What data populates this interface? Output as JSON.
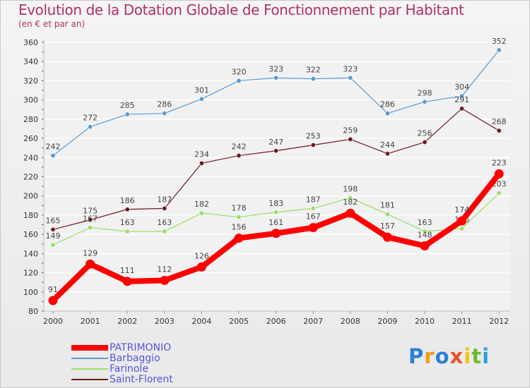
{
  "chart_data": {
    "type": "line",
    "title": "Evolution de la Dotation Globale de Fonctionnement par Habitant",
    "subtitle": "(en € et par an)",
    "categories": [
      "2000",
      "2001",
      "2002",
      "2003",
      "2004",
      "2005",
      "2006",
      "2007",
      "2008",
      "2009",
      "2010",
      "2011",
      "2012"
    ],
    "ylim": [
      80,
      360
    ],
    "yticks": [
      80,
      100,
      120,
      140,
      160,
      180,
      200,
      220,
      240,
      260,
      280,
      300,
      320,
      340,
      360
    ],
    "grid": "horizontal",
    "series": [
      {
        "name": "Barbaggio",
        "color": "#5a9ad0",
        "values": [
          242,
          272,
          285,
          286,
          301,
          320,
          323,
          322,
          323,
          286,
          298,
          304,
          352
        ]
      },
      {
        "name": "Saint-Florent",
        "color": "#6b1a22",
        "values": [
          165,
          175,
          186,
          187,
          234,
          242,
          247,
          253,
          259,
          244,
          256,
          291,
          268
        ]
      },
      {
        "name": "Farinole",
        "color": "#99dd66",
        "values": [
          149,
          167,
          163,
          163,
          182,
          178,
          183,
          187,
          198,
          181,
          163,
          166,
          203
        ]
      },
      {
        "name": "PATRIMONIO",
        "color": "#ff0000",
        "values": [
          91,
          129,
          111,
          112,
          126,
          156,
          161,
          167,
          182,
          157,
          148,
          174,
          223
        ]
      }
    ],
    "legend_order": [
      "PATRIMONIO",
      "Barbaggio",
      "Farinole",
      "Saint-Florent"
    ],
    "legend_position": "bottom-left"
  },
  "legend": {
    "items": [
      {
        "name": "PATRIMONIO",
        "color": "#ff0000"
      },
      {
        "name": "Barbaggio",
        "color": "#5a9ad0"
      },
      {
        "name": "Farinole",
        "color": "#99dd66"
      },
      {
        "name": "Saint-Florent",
        "color": "#6b1a22"
      }
    ]
  },
  "logo": {
    "text": "Proxiti",
    "letters": [
      {
        "char": "P",
        "color": "#2e7fd6"
      },
      {
        "char": "r",
        "color": "#f39a1e"
      },
      {
        "char": "o",
        "color": "#2e7fd6"
      },
      {
        "char": "x",
        "color": "#e8552a"
      },
      {
        "char": "i",
        "color": "#f3c21e"
      },
      {
        "char": "t",
        "color": "#6cbb2c"
      },
      {
        "char": "i",
        "color": "#2e9fd6"
      }
    ]
  }
}
